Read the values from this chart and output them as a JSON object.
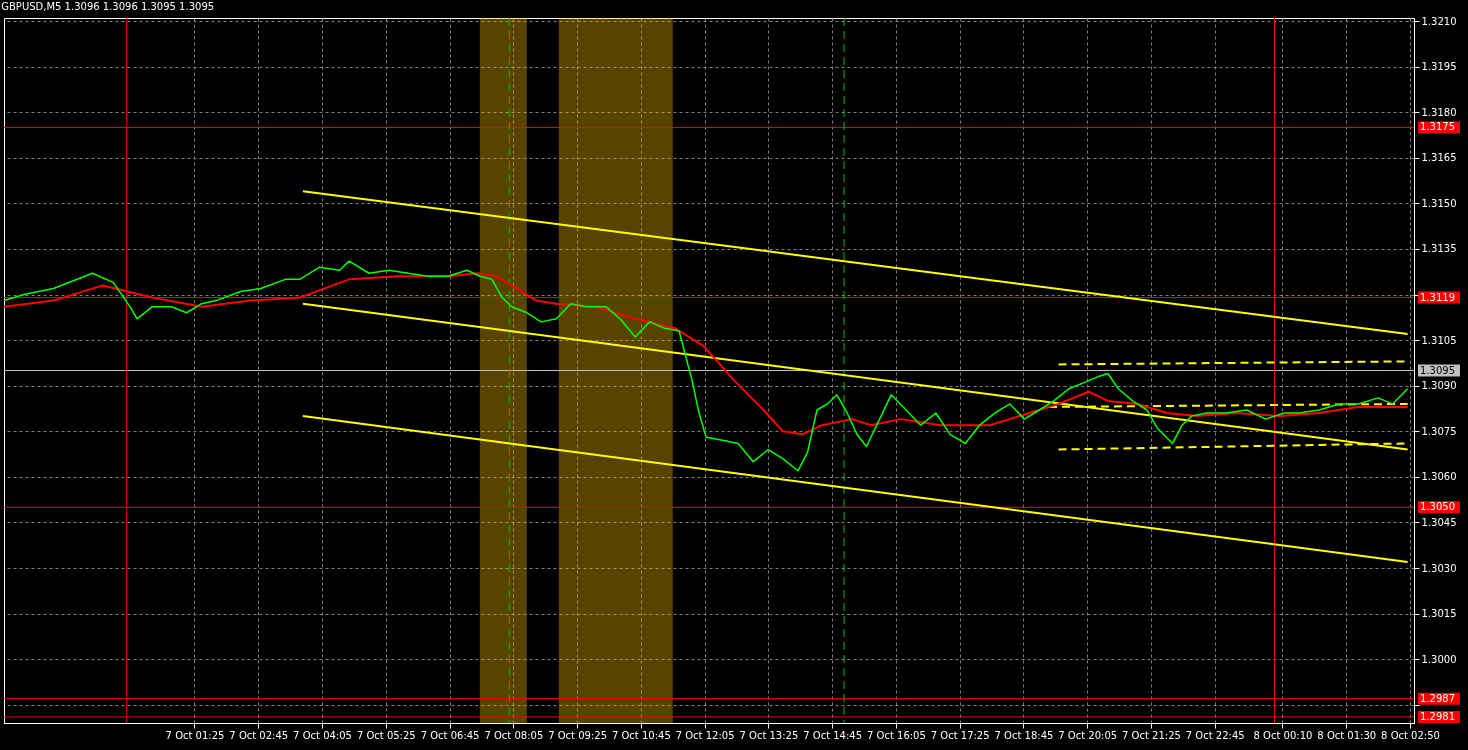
{
  "chart_data": {
    "type": "line",
    "title": "GBPUSD,M5  1.3096 1.3096 1.3095 1.3095",
    "xlim": [
      "--10-06T21:26",
      "--10-08T02:55"
    ],
    "ylim": [
      1.2979,
      1.3211
    ],
    "xticks": [
      {
        "value": "--10-07T01:25",
        "label": "7 Oct 01:25"
      },
      {
        "value": "--10-07T02:45",
        "label": "7 Oct 02:45"
      },
      {
        "value": "--10-07T04:05",
        "label": "7 Oct 04:05"
      },
      {
        "value": "--10-07T05:25",
        "label": "7 Oct 05:25"
      },
      {
        "value": "--10-07T06:45",
        "label": "7 Oct 06:45"
      },
      {
        "value": "--10-07T08:05",
        "label": "7 Oct 08:05"
      },
      {
        "value": "--10-07T09:25",
        "label": "7 Oct 09:25"
      },
      {
        "value": "--10-07T10:45",
        "label": "7 Oct 10:45"
      },
      {
        "value": "--10-07T12:05",
        "label": "7 Oct 12:05"
      },
      {
        "value": "--10-07T13:25",
        "label": "7 Oct 13:25"
      },
      {
        "value": "--10-07T14:45",
        "label": "7 Oct 14:45"
      },
      {
        "value": "--10-07T16:05",
        "label": "7 Oct 16:05"
      },
      {
        "value": "--10-07T17:25",
        "label": "7 Oct 17:25"
      },
      {
        "value": "--10-07T18:45",
        "label": "7 Oct 18:45"
      },
      {
        "value": "--10-07T20:05",
        "label": "7 Oct 20:05"
      },
      {
        "value": "--10-07T21:25",
        "label": "7 Oct 21:25"
      },
      {
        "value": "--10-07T22:45",
        "label": "7 Oct 22:45"
      },
      {
        "value": "--10-08T00:10",
        "label": "8 Oct 00:10"
      },
      {
        "value": "--10-08T01:30",
        "label": "8 Oct 01:30"
      },
      {
        "value": "--10-08T02:50",
        "label": "8 Oct 02:50"
      }
    ],
    "yticks": [
      {
        "value": 1.321,
        "label": "1.3210"
      },
      1.3195,
      {
        "value": 1.318,
        "label": "1.3180"
      },
      1.3165,
      {
        "value": 1.315,
        "label": "1.3150"
      },
      1.3135,
      {
        "value": 1.312,
        "label": null
      },
      1.3105,
      {
        "value": 1.309,
        "label": "1.3090"
      },
      1.3075,
      {
        "value": 1.306,
        "label": "1.3060"
      },
      1.3045,
      {
        "value": 1.303,
        "label": "1.3030"
      },
      1.3015,
      {
        "value": 1.3,
        "label": "1.3000"
      },
      {
        "value": 1.2985,
        "label": null
      }
    ],
    "grid": true,
    "marker": "none",
    "series": [
      {
        "color": "#00ff00",
        "x": [
          "--10-06T21:26",
          "--10-06T21:51",
          "--10-06T22:28",
          "--10-06T23:17",
          "--10-06T23:43",
          "--10-07T00:04",
          "--10-07T00:13",
          "--10-07T00:32",
          "--10-07T00:56",
          "--10-07T01:15",
          "--10-07T01:34",
          "--10-07T01:52",
          "--10-07T02:23",
          "--10-07T02:48",
          "--10-07T03:19",
          "--10-07T03:37",
          "--10-07T04:02",
          "--10-07T04:27",
          "--10-07T04:39",
          "--10-07T05:04",
          "--10-07T05:29",
          "--10-07T05:53",
          "--10-07T06:18",
          "--10-07T06:43",
          "--10-07T07:07",
          "--10-07T07:23",
          "--10-07T07:38",
          "--10-07T07:51",
          "--10-07T08:03",
          "--10-07T08:22",
          "--10-07T08:40",
          "--10-07T08:59",
          "--10-07T09:17",
          "--10-07T09:36",
          "--10-07T10:01",
          "--10-07T10:19",
          "--10-07T10:38",
          "--10-07T10:56",
          "--10-07T11:14",
          "--10-07T11:33",
          "--10-07T11:40",
          "--10-07T11:49",
          "--10-07T11:58",
          "--10-07T12:07",
          "--10-07T12:29",
          "--10-07T12:47",
          "--10-07T13:06",
          "--10-07T13:25",
          "--10-07T13:43",
          "--10-07T14:02",
          "--10-07T14:14",
          "--10-07T14:26",
          "--10-07T14:39",
          "--10-07T14:51",
          "--10-07T15:04",
          "--10-07T15:16",
          "--10-07T15:28",
          "--10-07T15:41",
          "--10-07T15:59",
          "--10-07T16:18",
          "--10-07T16:36",
          "--10-07T16:55",
          "--10-07T17:13",
          "--10-07T17:32",
          "--10-07T17:50",
          "--10-07T18:09",
          "--10-07T18:28",
          "--10-07T18:46",
          "--10-07T19:05",
          "--10-07T19:23",
          "--10-07T19:42",
          "--10-07T20:01",
          "--10-07T20:19",
          "--10-07T20:31",
          "--10-07T20:44",
          "--10-07T21:02",
          "--10-07T21:20",
          "--10-07T21:33",
          "--10-07T21:52",
          "--10-07T22:04",
          "--10-07T22:16",
          "--10-07T22:35",
          "--10-07T22:59",
          "--10-07T23:25",
          "--10-07T23:49",
          "--10-08T00:12",
          "--10-08T00:31",
          "--10-08T00:56",
          "--10-08T01:21",
          "--10-08T01:45",
          "--10-08T02:10",
          "--10-08T02:28",
          "--10-08T02:47"
        ],
        "values": [
          1.3118,
          1.312,
          1.3122,
          1.3127,
          1.3124,
          1.3116,
          1.3112,
          1.3116,
          1.3116,
          1.3114,
          1.3117,
          1.3118,
          1.3121,
          1.3122,
          1.3125,
          1.3125,
          1.3129,
          1.3128,
          1.3131,
          1.3127,
          1.3128,
          1.3127,
          1.3126,
          1.3126,
          1.3128,
          1.3126,
          1.3125,
          1.3119,
          1.3116,
          1.3114,
          1.3111,
          1.3112,
          1.3117,
          1.3116,
          1.3116,
          1.3112,
          1.3106,
          1.3111,
          1.3109,
          1.3108,
          1.3101,
          1.3092,
          1.3081,
          1.3073,
          1.3072,
          1.3071,
          1.3065,
          1.3069,
          1.3066,
          1.3062,
          1.3068,
          1.3082,
          1.3084,
          1.3087,
          1.3081,
          1.3074,
          1.307,
          1.3077,
          1.3087,
          1.3082,
          1.3077,
          1.3081,
          1.3074,
          1.3071,
          1.3077,
          1.3081,
          1.3084,
          1.3079,
          1.3082,
          1.3085,
          1.3089,
          1.3091,
          1.3093,
          1.3094,
          1.3089,
          1.3085,
          1.3082,
          1.3076,
          1.3071,
          1.3077,
          1.308,
          1.3081,
          1.3081,
          1.3082,
          1.3079,
          1.3081,
          1.3081,
          1.3082,
          1.3084,
          1.3084,
          1.3086,
          1.3084,
          1.3089
        ]
      },
      {
        "color": "#ff0000",
        "x": [
          "--10-06T21:26",
          "--10-06T22:28",
          "--10-06T23:30",
          "--10-07T00:01",
          "--10-07T00:32",
          "--10-07T01:34",
          "--10-07T02:35",
          "--10-07T03:37",
          "--10-07T04:39",
          "--10-07T05:41",
          "--10-07T06:43",
          "--10-07T07:20",
          "--10-07T07:44",
          "--10-07T08:09",
          "--10-07T08:34",
          "--10-07T08:59",
          "--10-07T09:48",
          "--10-07T10:38",
          "--10-07T11:27",
          "--10-07T12:04",
          "--10-07T12:41",
          "--10-07T13:19",
          "--10-07T13:43",
          "--10-07T14:08",
          "--10-07T14:32",
          "--10-07T15:10",
          "--10-07T15:34",
          "--10-07T16:11",
          "--10-07T17:01",
          "--10-07T18:03",
          "--10-07T18:52",
          "--10-07T19:29",
          "--10-07T20:07",
          "--10-07T20:31",
          "--10-07T21:08",
          "--10-07T21:45",
          "--10-07T22:22",
          "--10-07T23:12",
          "--10-08T00:06",
          "--10-08T00:56",
          "--10-08T01:45",
          "--10-08T02:47"
        ],
        "values": [
          1.3116,
          1.3118,
          1.3123,
          1.3121,
          1.3119,
          1.3116,
          1.3118,
          1.3119,
          1.3125,
          1.3126,
          1.3126,
          1.3127,
          1.3126,
          1.3122,
          1.3118,
          1.3117,
          1.3116,
          1.3112,
          1.3109,
          1.3103,
          1.3092,
          1.3082,
          1.3075,
          1.3074,
          1.3077,
          1.3079,
          1.3077,
          1.3079,
          1.3077,
          1.3077,
          1.3081,
          1.3084,
          1.3088,
          1.3085,
          1.3084,
          1.3081,
          1.308,
          1.3081,
          1.308,
          1.3081,
          1.3083,
          1.3083
        ]
      },
      {
        "color": "#ffff00",
        "x": [
          "--10-07T03:41",
          "--10-08T02:47"
        ],
        "values": [
          1.3154,
          1.3107
        ]
      },
      {
        "color": "#ffff00",
        "x": [
          "--10-07T03:41",
          "--10-08T02:47"
        ],
        "values": [
          1.3117,
          1.3069
        ]
      },
      {
        "color": "#ffff00",
        "x": [
          "--10-07T03:41",
          "--10-08T02:47"
        ],
        "values": [
          1.308,
          1.3032
        ]
      },
      {
        "color": "#ffff00",
        "line_style": "dashed",
        "x": [
          "--10-07T19:29",
          "--10-08T02:47"
        ],
        "values": [
          1.3097,
          1.3098
        ]
      },
      {
        "color": "#ffff00",
        "line_style": "dashed",
        "x": [
          "--10-07T19:17",
          "--10-08T02:47"
        ],
        "values": [
          1.3083,
          1.3084
        ]
      },
      {
        "color": "#ffff00",
        "line_style": "dashed",
        "x": [
          "--10-07T19:29",
          "--10-08T02:47"
        ],
        "values": [
          1.3069,
          1.3071
        ]
      }
    ],
    "bands": [
      {
        "axis": "x",
        "from": "--10-07T07:23",
        "to": "--10-07T08:22",
        "color": "#ffc000"
      },
      {
        "axis": "x",
        "from": "--10-07T09:02",
        "to": "--10-07T11:25",
        "color": "#ffc000"
      }
    ],
    "ref_lines": [
      {
        "axis": "y",
        "value": 1.3175,
        "label": "1.3175",
        "color": "#ff0000"
      },
      {
        "axis": "y",
        "value": 1.3119,
        "label": "1.3119",
        "color": "#ff0000"
      },
      {
        "axis": "y",
        "value": 1.305,
        "label": "1.3050",
        "color": "#ff0000"
      },
      {
        "axis": "y",
        "value": 1.2987,
        "label": "1.2987",
        "color": "#ff0000"
      },
      {
        "axis": "y",
        "value": 1.2981,
        "label": "1.2981",
        "color": "#ff0000"
      },
      {
        "axis": "y",
        "value": 1.3095,
        "label": "1.3095",
        "color": "#c0c0c0"
      },
      {
        "axis": "x",
        "value": "--10-07T00:00",
        "color": "#ff0000"
      },
      {
        "axis": "x",
        "value": "--10-08T00:00",
        "color": "#ff0000"
      },
      {
        "axis": "x",
        "value": "--10-07T08:00",
        "color": "#00c000",
        "line_style": "dashed"
      },
      {
        "axis": "x",
        "value": "--10-07T15:00",
        "color": "#00c000",
        "line_style": "dashed"
      }
    ]
  }
}
